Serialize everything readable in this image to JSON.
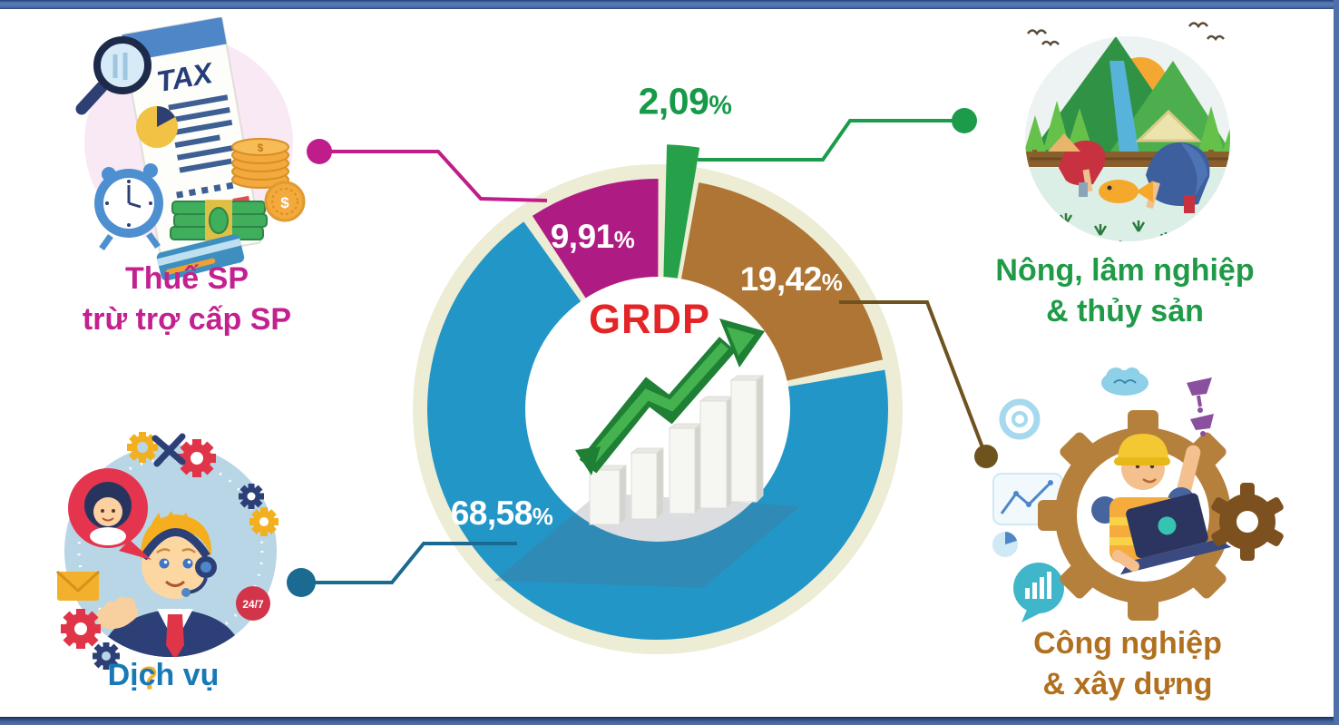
{
  "frame": {
    "top_bar_color": "#4e72ab",
    "edge_dark": "#22407c",
    "background": "#ffffff"
  },
  "chart_data": {
    "type": "pie",
    "title": "GRDP",
    "title_color": "#e42527",
    "unit": "%",
    "ring_color": "#edecd4",
    "hole_color": "#ffffff",
    "legend_position": "callouts-around",
    "segments": [
      {
        "id": "agriculture",
        "label": "Nông, lâm nghiệp & thủy sản",
        "value": 2.09,
        "value_text": "2,09",
        "value_display": "2,09%",
        "color": "#27a04a",
        "pct_label_color": "#169a47",
        "connector_color": "#1c9b4a",
        "exploded": true
      },
      {
        "id": "industry",
        "label": "Công nghiệp & xây dựng",
        "value": 19.42,
        "value_text": "19,42",
        "value_display": "19,42%",
        "color": "#ae7534",
        "pct_label_color": "#ffffff",
        "connector_color": "#6e531f",
        "exploded": false
      },
      {
        "id": "services",
        "label": "Dịch vụ",
        "value": 68.58,
        "value_text": "68,58",
        "value_display": "68,58%",
        "color": "#2396c8",
        "pct_label_color": "#ffffff",
        "connector_color": "#1b6a91",
        "exploded": false
      },
      {
        "id": "tax",
        "label": "Thuế SP trừ trợ cấp SP",
        "value": 9.91,
        "value_text": "9,91",
        "value_display": "9,91%",
        "color": "#ae1c83",
        "pct_label_color": "#ffffff",
        "connector_color": "#bf1d8a",
        "exploded": false
      }
    ]
  },
  "callouts": {
    "tax": {
      "line1": "Thuế SP",
      "line2": "trừ trợ cấp SP",
      "color": "#c2218f"
    },
    "agriculture": {
      "line1": "Nông, lâm nghiệp",
      "line2": "& thủy sản",
      "color": "#1f9a46"
    },
    "services": {
      "line1": "Dịch vụ",
      "line2": "",
      "color": "#1779b5"
    },
    "industry": {
      "line1": "Công nghiệp",
      "line2": "& xây dựng",
      "color": "#b0701f"
    }
  },
  "illustrations": {
    "tax_doc_label": "TAX",
    "support_badge": "24/7"
  }
}
